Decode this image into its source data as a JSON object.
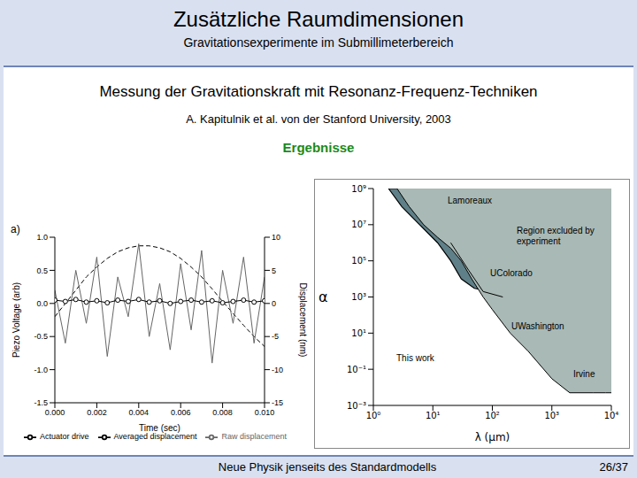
{
  "slide": {
    "title": "Zusätzliche Raumdimensionen",
    "subtitle": "Gravitationsexperimente im Submillimeterbereich",
    "heading": "Messung der Gravitationskraft mit Resonanz-Frequenz-Techniken",
    "reference": "A. Kapitulnik et al. von der Stanford University, 2003",
    "section": "Ergebnisse",
    "footer": "Neue Physik jenseits des Standardmodells",
    "page": "26/37"
  },
  "chart_data": [
    {
      "type": "line",
      "panel_label": "a)",
      "x_label": "Time (sec)",
      "y_label": "Piezo Voltage (arb)",
      "y2_label": "Displacement (nm)",
      "x": [
        0,
        0.0005,
        0.001,
        0.0015,
        0.002,
        0.0025,
        0.003,
        0.0035,
        0.004,
        0.0045,
        0.005,
        0.0055,
        0.006,
        0.0065,
        0.007,
        0.0075,
        0.008,
        0.0085,
        0.009,
        0.0095,
        0.01
      ],
      "xlim": [
        0,
        0.01
      ],
      "xticks": [
        {
          "value": 0,
          "label": "0.000"
        },
        {
          "value": 0.002,
          "label": "0.002"
        },
        {
          "value": 0.004,
          "label": "0.004"
        },
        {
          "value": 0.006,
          "label": "0.006"
        },
        {
          "value": 0.008,
          "label": "0.008"
        },
        {
          "value": 0.01,
          "label": "0.010"
        }
      ],
      "ylim": [
        -1.5,
        1
      ],
      "yticks": [
        {
          "value": 1,
          "label": "1.0"
        },
        0.5,
        {
          "value": 0,
          "label": "0.0"
        },
        -0.5,
        {
          "value": -1,
          "label": "-1.0"
        },
        -1.5
      ],
      "y2lim": [
        -15,
        10
      ],
      "y2ticks": [
        10,
        5,
        0,
        -5,
        -10,
        -15
      ],
      "legend": "bottom",
      "series": [
        {
          "name": "Actuator drive",
          "color": "#000000",
          "line_style": "dashed",
          "values": [
            -0.2,
            0.0,
            0.2,
            0.4,
            0.55,
            0.68,
            0.78,
            0.84,
            0.87,
            0.87,
            0.84,
            0.78,
            0.68,
            0.55,
            0.4,
            0.22,
            0.03,
            -0.15,
            -0.33,
            -0.5,
            -0.65
          ]
        },
        {
          "name": "Raw displacement",
          "color": "#666666",
          "line_style": "solid",
          "axis": "y2",
          "values": [
            2,
            -6,
            5,
            -3,
            7,
            -8,
            4,
            -2,
            9,
            -5,
            3,
            -7,
            6,
            -4,
            8,
            -9,
            5,
            -3,
            7,
            -6,
            4
          ]
        },
        {
          "name": "Averaged displacement",
          "color": "#000000",
          "marker": "circle",
          "line_style": "solid",
          "axis": "y2",
          "values": [
            0.5,
            0.3,
            0.6,
            0.2,
            0.4,
            0.1,
            0.5,
            0.3,
            0.6,
            0.2,
            0.4,
            0.0,
            0.3,
            0.5,
            0.2,
            0.4,
            0.1,
            0.3,
            0.5,
            0.2,
            0.4
          ]
        }
      ]
    },
    {
      "type": "line",
      "log": true,
      "x_label": "λ (µm)",
      "y_label": "α",
      "xlim": [
        1,
        10000
      ],
      "xticks": [
        {
          "value": 1,
          "label": "10⁰"
        },
        {
          "value": 10,
          "label": "10¹"
        },
        {
          "value": 100,
          "label": "10²"
        },
        {
          "value": 1000,
          "label": "10³"
        },
        {
          "value": 10000,
          "label": "10⁴"
        }
      ],
      "ylim": [
        0.001,
        1000000000.0
      ],
      "yticks": [
        {
          "value": 1000000000.0,
          "label": "10⁹"
        },
        {
          "value": 10000000.0,
          "label": "10⁷"
        },
        {
          "value": 100000.0,
          "label": "10⁵"
        },
        {
          "value": 1000,
          "label": "10³"
        },
        {
          "value": 10,
          "label": "10¹"
        },
        {
          "value": 0.1,
          "label": "10⁻¹"
        },
        {
          "value": 0.001,
          "label": "10⁻³"
        }
      ],
      "series": [
        {
          "name": "This work",
          "type": "area",
          "color": "#5f8088",
          "x": [
            1.8,
            3,
            6,
            12,
            20,
            30,
            50,
            100,
            200
          ],
          "values": [
            1000000000.0,
            100000000.0,
            10000000.0,
            1000000.0,
            100000.0,
            10000.0,
            3000,
            2000,
            1800
          ]
        },
        {
          "name": "Region excluded by experiment",
          "type": "area",
          "color": "#a9b9b5",
          "x": [
            2.5,
            4,
            7,
            12,
            20,
            30,
            45,
            70,
            100,
            200,
            400,
            1000,
            2000,
            5000,
            8000,
            10000
          ],
          "values": [
            1000000000.0,
            100000000.0,
            10000000.0,
            2000000.0,
            500000.0,
            100000.0,
            10000.0,
            1000,
            200,
            10,
            1,
            0.03,
            0.005,
            0.005,
            0.005,
            0.005
          ]
        },
        {
          "name": "Lamoreaux",
          "type": "line",
          "color": "#000000",
          "x": [
            2.5,
            4,
            7,
            12,
            20,
            30,
            45
          ],
          "values": [
            1000000000.0,
            100000000.0,
            10000000.0,
            2000000.0,
            500000.0,
            100000.0,
            10000.0
          ]
        },
        {
          "name": "UColorado",
          "type": "line",
          "color": "#000000",
          "x": [
            20,
            40,
            70,
            150
          ],
          "values": [
            1000000.0,
            30000.0,
            2000,
            1000
          ]
        },
        {
          "name": "UWashington",
          "type": "line",
          "color": "#000000",
          "x": [
            45,
            70,
            100,
            200,
            400,
            1000
          ],
          "values": [
            10000.0,
            1000,
            200,
            10,
            1,
            0.03
          ]
        },
        {
          "name": "Irvine",
          "type": "line",
          "color": "#000000",
          "x": [
            1000,
            2000,
            5000,
            8000,
            10000
          ],
          "values": [
            0.03,
            0.005,
            0.005,
            0.005,
            0.005
          ]
        }
      ]
    }
  ]
}
